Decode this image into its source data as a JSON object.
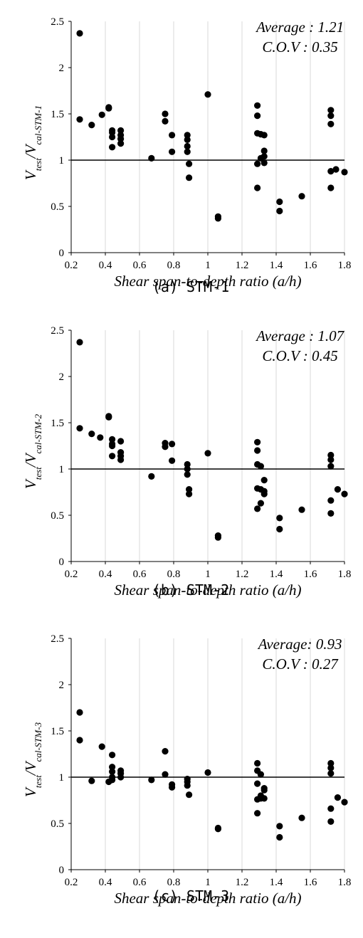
{
  "chart_data": [
    {
      "type": "scatter",
      "caption": "(a) STM-1",
      "annotation": [
        "Average : 1.21",
        "C.O.V : 0.35"
      ],
      "ylabel_main": "V",
      "ylabel_sub1": "test",
      "ylabel_slash": "/V",
      "ylabel_sub2": "cal-STM-1",
      "xlabel": "Shear span-to-depth ratio    (a/h)",
      "xlim": [
        0.2,
        1.8
      ],
      "ylim": [
        0,
        2.5
      ],
      "xticks": [
        "0.2",
        "0.4",
        "0.6",
        "0.8",
        "1",
        "1.2",
        "1.4",
        "1.6",
        "1.8"
      ],
      "yticks": [
        "0",
        "0.5",
        "1",
        "1.5",
        "2",
        "2.5"
      ],
      "reference_line_y": 1,
      "grid": "vertical",
      "points": [
        [
          0.25,
          2.37
        ],
        [
          0.25,
          1.44
        ],
        [
          0.32,
          1.38
        ],
        [
          0.38,
          1.49
        ],
        [
          0.42,
          1.56
        ],
        [
          0.42,
          1.57
        ],
        [
          0.44,
          1.32
        ],
        [
          0.44,
          1.3
        ],
        [
          0.44,
          1.25
        ],
        [
          0.44,
          1.14
        ],
        [
          0.49,
          1.32
        ],
        [
          0.49,
          1.27
        ],
        [
          0.49,
          1.23
        ],
        [
          0.49,
          1.18
        ],
        [
          0.67,
          1.02
        ],
        [
          0.75,
          1.5
        ],
        [
          0.75,
          1.42
        ],
        [
          0.79,
          1.27
        ],
        [
          0.79,
          1.09
        ],
        [
          0.88,
          1.27
        ],
        [
          0.88,
          1.22
        ],
        [
          0.88,
          1.15
        ],
        [
          0.88,
          1.09
        ],
        [
          0.89,
          0.96
        ],
        [
          0.89,
          0.81
        ],
        [
          1.0,
          1.71
        ],
        [
          1.06,
          0.39
        ],
        [
          1.06,
          0.37
        ],
        [
          1.29,
          1.59
        ],
        [
          1.29,
          1.48
        ],
        [
          1.29,
          1.29
        ],
        [
          1.29,
          0.96
        ],
        [
          1.29,
          0.7
        ],
        [
          1.31,
          1.28
        ],
        [
          1.31,
          1.02
        ],
        [
          1.33,
          1.27
        ],
        [
          1.33,
          1.1
        ],
        [
          1.33,
          1.04
        ],
        [
          1.33,
          0.97
        ],
        [
          1.42,
          0.55
        ],
        [
          1.42,
          0.45
        ],
        [
          1.55,
          0.61
        ],
        [
          1.72,
          1.54
        ],
        [
          1.72,
          1.48
        ],
        [
          1.72,
          1.39
        ],
        [
          1.72,
          0.88
        ],
        [
          1.72,
          0.7
        ],
        [
          1.75,
          0.9
        ],
        [
          1.8,
          0.87
        ]
      ]
    },
    {
      "type": "scatter",
      "caption": "(b) STM-2",
      "annotation": [
        "Average : 1.07",
        "C.O.V : 0.45"
      ],
      "ylabel_main": "V",
      "ylabel_sub1": "test",
      "ylabel_slash": "/V",
      "ylabel_sub2": "cal-STM-2",
      "xlabel": "Shear span-to-depth ratio    (a/h)",
      "xlim": [
        0.2,
        1.8
      ],
      "ylim": [
        0,
        2.5
      ],
      "xticks": [
        "0.2",
        "0.4",
        "0.6",
        "0.8",
        "1",
        "1.2",
        "1.4",
        "1.6",
        "1.8"
      ],
      "yticks": [
        "0",
        "0.5",
        "1",
        "1.5",
        "2",
        "2.5"
      ],
      "reference_line_y": 1,
      "grid": "vertical",
      "points": [
        [
          0.25,
          2.37
        ],
        [
          0.25,
          1.44
        ],
        [
          0.32,
          1.38
        ],
        [
          0.37,
          1.34
        ],
        [
          0.42,
          1.57
        ],
        [
          0.42,
          1.56
        ],
        [
          0.44,
          1.32
        ],
        [
          0.44,
          1.27
        ],
        [
          0.44,
          1.25
        ],
        [
          0.44,
          1.14
        ],
        [
          0.49,
          1.3
        ],
        [
          0.49,
          1.18
        ],
        [
          0.49,
          1.14
        ],
        [
          0.49,
          1.1
        ],
        [
          0.67,
          0.92
        ],
        [
          0.75,
          1.28
        ],
        [
          0.75,
          1.24
        ],
        [
          0.79,
          1.27
        ],
        [
          0.79,
          1.09
        ],
        [
          0.88,
          1.05
        ],
        [
          0.88,
          1.0
        ],
        [
          0.88,
          0.94
        ],
        [
          0.89,
          0.78
        ],
        [
          0.89,
          0.73
        ],
        [
          1.0,
          1.17
        ],
        [
          1.06,
          0.28
        ],
        [
          1.06,
          0.26
        ],
        [
          1.29,
          1.29
        ],
        [
          1.29,
          1.2
        ],
        [
          1.29,
          1.05
        ],
        [
          1.29,
          0.79
        ],
        [
          1.29,
          0.57
        ],
        [
          1.31,
          1.03
        ],
        [
          1.31,
          0.78
        ],
        [
          1.33,
          0.88
        ],
        [
          1.33,
          0.76
        ],
        [
          1.33,
          0.73
        ],
        [
          1.31,
          0.63
        ],
        [
          1.42,
          0.47
        ],
        [
          1.42,
          0.35
        ],
        [
          1.55,
          0.56
        ],
        [
          1.72,
          1.15
        ],
        [
          1.72,
          1.1
        ],
        [
          1.72,
          1.03
        ],
        [
          1.72,
          0.66
        ],
        [
          1.72,
          0.52
        ],
        [
          1.76,
          0.78
        ],
        [
          1.8,
          0.73
        ]
      ]
    },
    {
      "type": "scatter",
      "caption": "(c) STM-3",
      "annotation": [
        "Average: 0.93",
        "C.O.V : 0.27"
      ],
      "ylabel_main": "V",
      "ylabel_sub1": "test",
      "ylabel_slash": "/V",
      "ylabel_sub2": "cal-STM-3",
      "xlabel": "Shear span-to-depth ratio    (a/h)",
      "xlim": [
        0.2,
        1.8
      ],
      "ylim": [
        0,
        2.5
      ],
      "xticks": [
        "0.2",
        "0.4",
        "0.6",
        "0.8",
        "1",
        "1.2",
        "1.4",
        "1.6",
        "1.8"
      ],
      "yticks": [
        "0",
        "0.5",
        "1",
        "1.5",
        "2",
        "2.5"
      ],
      "reference_line_y": 1,
      "grid": "vertical",
      "points": [
        [
          0.25,
          1.7
        ],
        [
          0.25,
          1.4
        ],
        [
          0.32,
          0.96
        ],
        [
          0.38,
          1.33
        ],
        [
          0.42,
          0.95
        ],
        [
          0.44,
          1.24
        ],
        [
          0.44,
          1.11
        ],
        [
          0.44,
          1.06
        ],
        [
          0.44,
          1.0
        ],
        [
          0.44,
          0.97
        ],
        [
          0.49,
          1.07
        ],
        [
          0.49,
          1.04
        ],
        [
          0.49,
          1.0
        ],
        [
          0.67,
          0.97
        ],
        [
          0.75,
          1.28
        ],
        [
          0.75,
          1.03
        ],
        [
          0.79,
          0.92
        ],
        [
          0.79,
          0.89
        ],
        [
          0.88,
          0.98
        ],
        [
          0.88,
          0.95
        ],
        [
          0.88,
          0.91
        ],
        [
          0.89,
          0.81
        ],
        [
          1.0,
          1.05
        ],
        [
          1.06,
          0.45
        ],
        [
          1.06,
          0.44
        ],
        [
          1.29,
          1.15
        ],
        [
          1.29,
          1.07
        ],
        [
          1.29,
          0.93
        ],
        [
          1.29,
          0.76
        ],
        [
          1.29,
          0.61
        ],
        [
          1.31,
          1.03
        ],
        [
          1.31,
          0.8
        ],
        [
          1.33,
          0.88
        ],
        [
          1.33,
          0.86
        ],
        [
          1.33,
          0.77
        ],
        [
          1.31,
          0.77
        ],
        [
          1.42,
          0.47
        ],
        [
          1.42,
          0.35
        ],
        [
          1.55,
          0.56
        ],
        [
          1.72,
          1.15
        ],
        [
          1.72,
          1.1
        ],
        [
          1.72,
          1.04
        ],
        [
          1.72,
          0.66
        ],
        [
          1.72,
          0.52
        ],
        [
          1.76,
          0.78
        ],
        [
          1.8,
          0.73
        ]
      ]
    }
  ]
}
